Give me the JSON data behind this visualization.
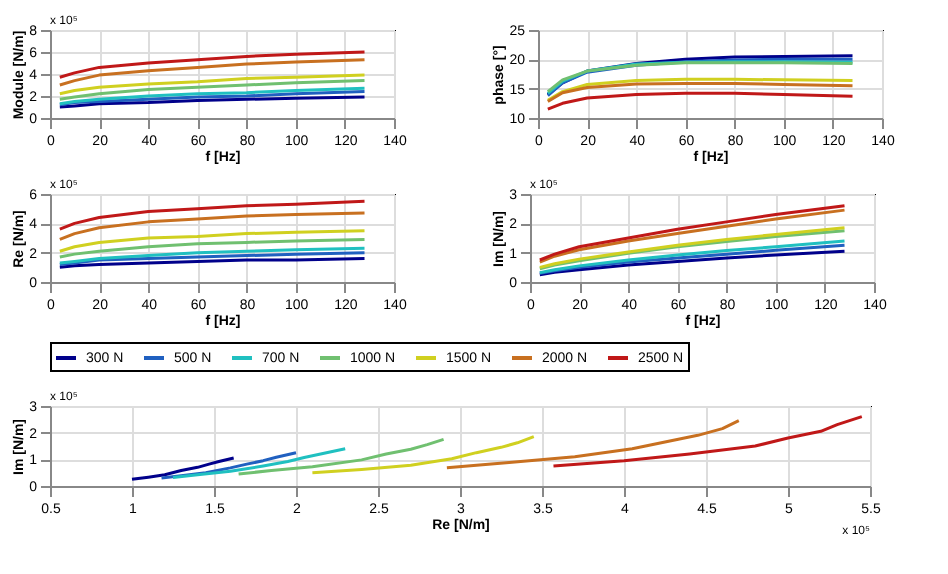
{
  "chart_data": [
    {
      "type": "line",
      "xlabel": "f [Hz]",
      "ylabel": "Module [N/m]",
      "annotations": [
        "x 10⁵"
      ],
      "x": [
        4,
        10,
        20,
        40,
        60,
        80,
        100,
        128
      ],
      "xlim": [
        0,
        140
      ],
      "xticks": [
        0,
        20,
        40,
        60,
        80,
        100,
        120,
        140
      ],
      "ylim": [
        0,
        8
      ],
      "yticks": [
        0,
        2,
        4,
        6,
        8
      ],
      "grid": true,
      "series": [
        {
          "color": "#00008b",
          "values": [
            1.0,
            1.1,
            1.3,
            1.4,
            1.6,
            1.7,
            1.8,
            1.9
          ]
        },
        {
          "color": "#2060c0",
          "values": [
            1.2,
            1.4,
            1.5,
            1.7,
            1.9,
            2.0,
            2.2,
            2.4
          ]
        },
        {
          "color": "#20c0c0",
          "values": [
            1.3,
            1.5,
            1.7,
            2.0,
            2.2,
            2.3,
            2.5,
            2.7
          ]
        },
        {
          "color": "#70c070",
          "values": [
            1.7,
            1.9,
            2.2,
            2.6,
            2.8,
            3.0,
            3.2,
            3.4
          ]
        },
        {
          "color": "#d0d020",
          "values": [
            2.2,
            2.5,
            2.8,
            3.1,
            3.3,
            3.6,
            3.7,
            3.9
          ]
        },
        {
          "color": "#c87020",
          "values": [
            3.0,
            3.4,
            3.9,
            4.3,
            4.6,
            4.9,
            5.1,
            5.3
          ]
        },
        {
          "color": "#c01818",
          "values": [
            3.7,
            4.1,
            4.6,
            5.0,
            5.3,
            5.6,
            5.8,
            6.0
          ]
        }
      ]
    },
    {
      "type": "line",
      "xlabel": "f [Hz]",
      "ylabel": "phase [°]",
      "x": [
        4,
        10,
        20,
        40,
        60,
        80,
        100,
        128
      ],
      "xlim": [
        0,
        140
      ],
      "xticks": [
        0,
        20,
        40,
        60,
        80,
        100,
        120,
        140
      ],
      "ylim": [
        10,
        25
      ],
      "yticks": [
        10,
        15,
        20,
        25
      ],
      "grid": true,
      "series": [
        {
          "color": "#00008b",
          "values": [
            14,
            16,
            18,
            19.3,
            20,
            20.4,
            20.5,
            20.6
          ]
        },
        {
          "color": "#2060c0",
          "values": [
            13.8,
            16,
            17.8,
            19,
            19.6,
            19.9,
            20,
            20
          ]
        },
        {
          "color": "#20c0c0",
          "values": [
            14.2,
            16.3,
            18,
            19.2,
            19.5,
            19.6,
            19.6,
            19.5
          ]
        },
        {
          "color": "#70c070",
          "values": [
            14.5,
            16.5,
            18,
            19,
            19.4,
            19.4,
            19.4,
            19.3
          ]
        },
        {
          "color": "#d0d020",
          "values": [
            13,
            14.5,
            15.7,
            16.4,
            16.6,
            16.6,
            16.5,
            16.4
          ]
        },
        {
          "color": "#c87020",
          "values": [
            12.8,
            14.3,
            15.2,
            15.8,
            15.9,
            15.9,
            15.7,
            15.5
          ]
        },
        {
          "color": "#c01818",
          "values": [
            11.5,
            12.5,
            13.4,
            14,
            14.2,
            14.2,
            14,
            13.7
          ]
        }
      ]
    },
    {
      "type": "line",
      "xlabel": "f [Hz]",
      "ylabel": "Re [N/m]",
      "annotations": [
        "x 10⁵"
      ],
      "x": [
        4,
        10,
        20,
        40,
        60,
        80,
        100,
        128
      ],
      "xlim": [
        0,
        140
      ],
      "xticks": [
        0,
        20,
        40,
        60,
        80,
        100,
        120,
        140
      ],
      "ylim": [
        0,
        6
      ],
      "yticks": [
        0,
        2,
        4,
        6
      ],
      "grid": true,
      "series": [
        {
          "color": "#00008b",
          "values": [
            1.0,
            1.1,
            1.2,
            1.3,
            1.4,
            1.5,
            1.5,
            1.6
          ]
        },
        {
          "color": "#2060c0",
          "values": [
            1.2,
            1.3,
            1.5,
            1.6,
            1.7,
            1.8,
            1.9,
            2.0
          ]
        },
        {
          "color": "#20c0c0",
          "values": [
            1.3,
            1.4,
            1.6,
            1.8,
            2.0,
            2.1,
            2.2,
            2.3
          ]
        },
        {
          "color": "#70c070",
          "values": [
            1.7,
            1.9,
            2.1,
            2.4,
            2.6,
            2.7,
            2.8,
            2.9
          ]
        },
        {
          "color": "#d0d020",
          "values": [
            2.1,
            2.4,
            2.7,
            3.0,
            3.1,
            3.3,
            3.4,
            3.5
          ]
        },
        {
          "color": "#c87020",
          "values": [
            2.9,
            3.3,
            3.7,
            4.1,
            4.3,
            4.5,
            4.6,
            4.7
          ]
        },
        {
          "color": "#c01818",
          "values": [
            3.6,
            4.0,
            4.4,
            4.8,
            5.0,
            5.2,
            5.3,
            5.5
          ]
        }
      ]
    },
    {
      "type": "line",
      "xlabel": "f [Hz]",
      "ylabel": "Im [N/m]",
      "annotations": [
        "x 10⁵"
      ],
      "x": [
        4,
        10,
        20,
        40,
        60,
        80,
        100,
        128
      ],
      "xlim": [
        0,
        140
      ],
      "xticks": [
        0,
        20,
        40,
        60,
        80,
        100,
        120,
        140
      ],
      "ylim": [
        0,
        3
      ],
      "yticks": [
        0,
        1,
        2,
        3
      ],
      "grid": true,
      "series": [
        {
          "color": "#00008b",
          "values": [
            0.25,
            0.33,
            0.42,
            0.58,
            0.7,
            0.82,
            0.92,
            1.05
          ]
        },
        {
          "color": "#2060c0",
          "values": [
            0.3,
            0.38,
            0.5,
            0.68,
            0.82,
            0.95,
            1.08,
            1.25
          ]
        },
        {
          "color": "#20c0c0",
          "values": [
            0.32,
            0.42,
            0.55,
            0.75,
            0.92,
            1.07,
            1.2,
            1.4
          ]
        },
        {
          "color": "#70c070",
          "values": [
            0.45,
            0.58,
            0.72,
            0.98,
            1.2,
            1.38,
            1.55,
            1.75
          ]
        },
        {
          "color": "#d0d020",
          "values": [
            0.5,
            0.62,
            0.78,
            1.02,
            1.25,
            1.45,
            1.62,
            1.85
          ]
        },
        {
          "color": "#c87020",
          "values": [
            0.68,
            0.88,
            1.1,
            1.4,
            1.65,
            1.9,
            2.15,
            2.45
          ]
        },
        {
          "color": "#c01818",
          "values": [
            0.75,
            0.95,
            1.2,
            1.5,
            1.8,
            2.05,
            2.3,
            2.6
          ]
        }
      ]
    },
    {
      "type": "line",
      "xlabel": "Re [N/m]",
      "ylabel": "Im [N/m]",
      "annotations": [
        "x 10⁵",
        "x 10⁵"
      ],
      "xlim": [
        0.5,
        5.5
      ],
      "xticks": [
        0.5,
        {
          "value": 1,
          "label": "1"
        },
        1.5,
        {
          "value": 2,
          "label": "2"
        },
        2.5,
        {
          "value": 3,
          "label": "3"
        },
        3.5,
        {
          "value": 4,
          "label": "4"
        },
        4.5,
        {
          "value": 5,
          "label": "5"
        },
        5.5
      ],
      "ylim": [
        0,
        3
      ],
      "yticks": [
        0,
        1,
        2,
        3
      ],
      "grid": true,
      "legend": "top",
      "series": [
        {
          "name": "300 N",
          "color": "#00008b",
          "x": [
            1.0,
            1.1,
            1.2,
            1.3,
            1.4,
            1.47,
            1.53,
            1.62
          ],
          "values": [
            0.25,
            0.33,
            0.42,
            0.58,
            0.7,
            0.82,
            0.92,
            1.05
          ]
        },
        {
          "name": "500 N",
          "color": "#2060c0",
          "x": [
            1.18,
            1.3,
            1.45,
            1.6,
            1.7,
            1.8,
            1.88,
            2.0
          ],
          "values": [
            0.3,
            0.38,
            0.5,
            0.68,
            0.82,
            0.95,
            1.08,
            1.25
          ]
        },
        {
          "name": "700 N",
          "color": "#20c0c0",
          "x": [
            1.25,
            1.4,
            1.6,
            1.8,
            1.95,
            2.05,
            2.15,
            2.3
          ],
          "values": [
            0.32,
            0.42,
            0.55,
            0.75,
            0.92,
            1.07,
            1.2,
            1.4
          ]
        },
        {
          "name": "1000 N",
          "color": "#70c070",
          "x": [
            1.65,
            1.85,
            2.1,
            2.4,
            2.55,
            2.7,
            2.8,
            2.9
          ],
          "values": [
            0.45,
            0.58,
            0.72,
            0.98,
            1.2,
            1.38,
            1.55,
            1.75
          ]
        },
        {
          "name": "1500 N",
          "color": "#d0d020",
          "x": [
            2.1,
            2.4,
            2.7,
            2.95,
            3.1,
            3.25,
            3.35,
            3.45
          ],
          "values": [
            0.5,
            0.62,
            0.78,
            1.02,
            1.25,
            1.45,
            1.62,
            1.85
          ]
        },
        {
          "name": "2000 N",
          "color": "#c87020",
          "x": [
            2.92,
            3.3,
            3.7,
            4.05,
            4.25,
            4.45,
            4.6,
            4.7
          ],
          "values": [
            0.68,
            0.88,
            1.1,
            1.4,
            1.65,
            1.9,
            2.15,
            2.45
          ]
        },
        {
          "name": "2500 N",
          "color": "#c01818",
          "x": [
            3.57,
            4.0,
            4.4,
            4.8,
            5.0,
            5.2,
            5.3,
            5.45
          ],
          "values": [
            0.75,
            0.95,
            1.2,
            1.5,
            1.8,
            2.05,
            2.3,
            2.6
          ]
        }
      ]
    }
  ]
}
